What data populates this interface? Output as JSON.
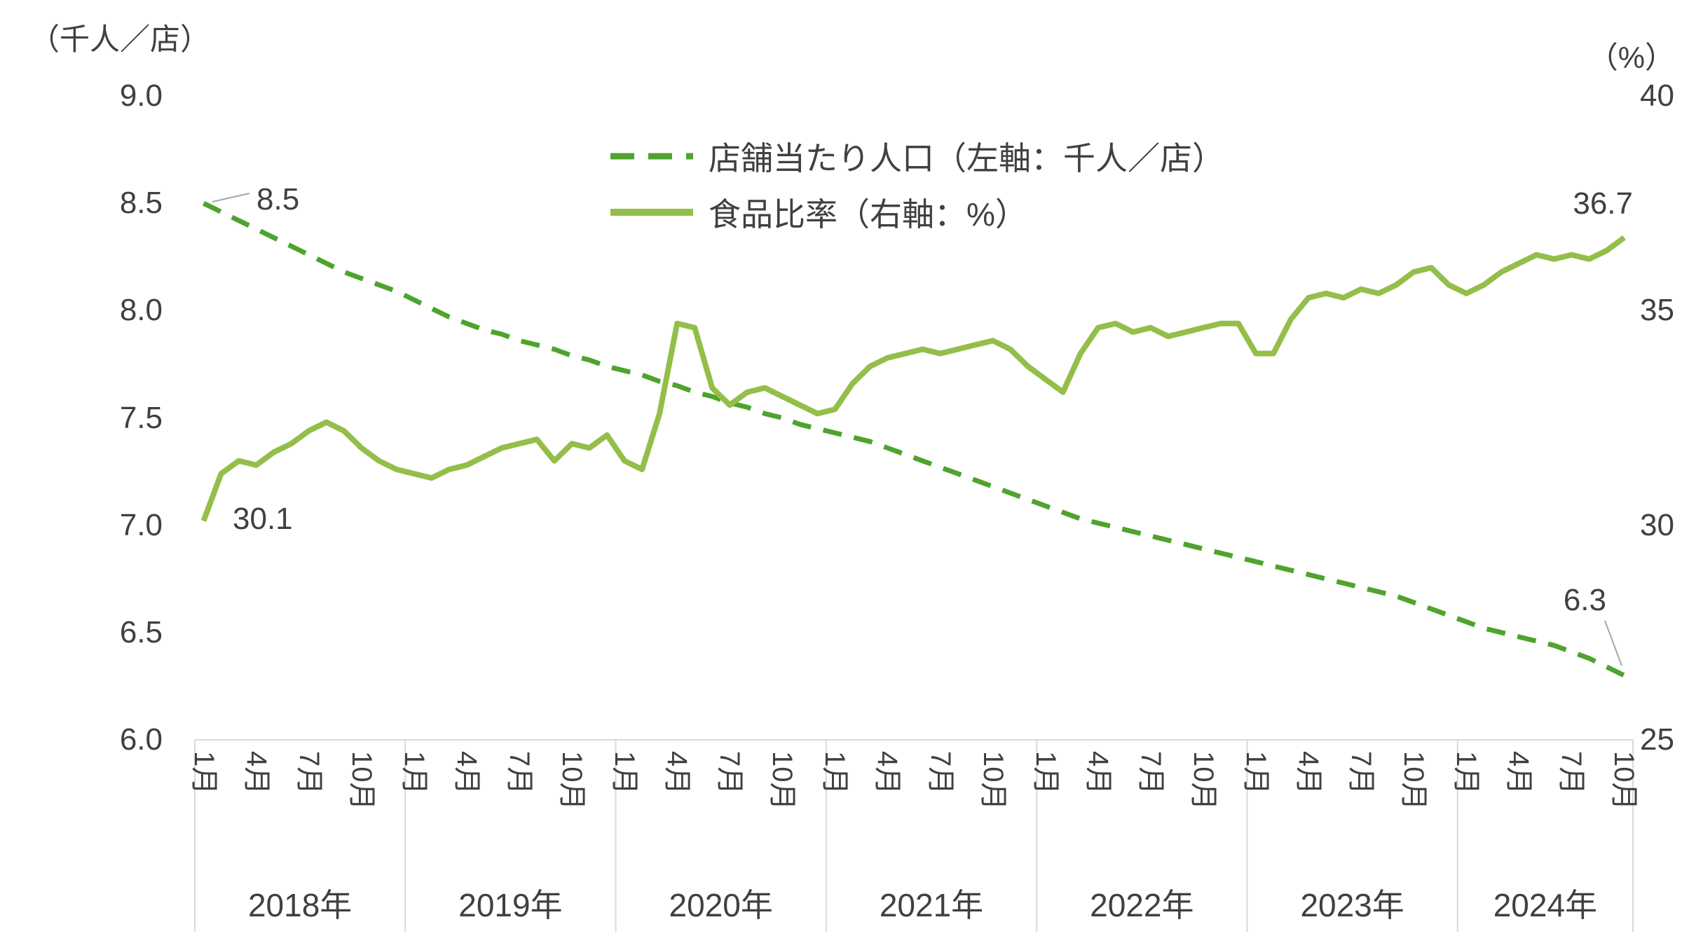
{
  "colors": {
    "dashed": "#4FA32E",
    "solid": "#94BE4A",
    "text": "#404040",
    "axis": "#D9D9D9",
    "leader": "#A6A6A6",
    "background": "#FFFFFF"
  },
  "chart_data": {
    "type": "line",
    "title": "",
    "left_axis": {
      "unit": "（千人／店）",
      "range": [
        6.0,
        9.0
      ],
      "ticks": [
        "9.0",
        "8.5",
        "8.0",
        "7.5",
        "7.0",
        "6.5",
        "6.0"
      ],
      "tick_values": [
        9.0,
        8.5,
        8.0,
        7.5,
        7.0,
        6.5,
        6.0
      ]
    },
    "right_axis": {
      "unit": "（%）",
      "range": [
        25,
        40
      ],
      "ticks": [
        "40",
        "35",
        "30",
        "25"
      ],
      "tick_values": [
        40,
        35,
        30,
        25
      ]
    },
    "x_axis": {
      "years": [
        {
          "label": "2018年",
          "months": 12
        },
        {
          "label": "2019年",
          "months": 12
        },
        {
          "label": "2020年",
          "months": 12
        },
        {
          "label": "2021年",
          "months": 12
        },
        {
          "label": "2022年",
          "months": 12
        },
        {
          "label": "2023年",
          "months": 12
        },
        {
          "label": "2024年",
          "months": 10
        }
      ],
      "month_tick_labels": [
        "1月",
        "4月",
        "7月",
        "10月"
      ],
      "month_tick_offsets": [
        0,
        3,
        6,
        9
      ]
    },
    "legend": [
      {
        "name": "店舗当たり人口（左軸：千人／店）",
        "style": "dashed"
      },
      {
        "name": "食品比率（右軸：%）",
        "style": "solid"
      }
    ],
    "series": [
      {
        "name": "店舗当たり人口",
        "axis": "left",
        "style": "dashed",
        "values": [
          8.5,
          8.46,
          8.42,
          8.38,
          8.34,
          8.3,
          8.26,
          8.22,
          8.18,
          8.15,
          8.12,
          8.09,
          8.05,
          8.01,
          7.97,
          7.94,
          7.91,
          7.89,
          7.86,
          7.84,
          7.82,
          7.79,
          7.77,
          7.74,
          7.72,
          7.7,
          7.67,
          7.65,
          7.62,
          7.6,
          7.57,
          7.55,
          7.52,
          7.5,
          7.47,
          7.45,
          7.43,
          7.41,
          7.39,
          7.36,
          7.33,
          7.3,
          7.27,
          7.24,
          7.21,
          7.18,
          7.15,
          7.12,
          7.09,
          7.06,
          7.03,
          7.01,
          6.99,
          6.97,
          6.95,
          6.93,
          6.91,
          6.89,
          6.87,
          6.85,
          6.83,
          6.81,
          6.79,
          6.77,
          6.75,
          6.73,
          6.71,
          6.69,
          6.67,
          6.64,
          6.61,
          6.58,
          6.55,
          6.52,
          6.5,
          6.48,
          6.46,
          6.44,
          6.41,
          6.38,
          6.34,
          6.3
        ]
      },
      {
        "name": "食品比率",
        "axis": "right",
        "style": "solid",
        "values": [
          30.1,
          31.2,
          31.5,
          31.4,
          31.7,
          31.9,
          32.2,
          32.4,
          32.2,
          31.8,
          31.5,
          31.3,
          31.2,
          31.1,
          31.3,
          31.4,
          31.6,
          31.8,
          31.9,
          32.0,
          31.5,
          31.9,
          31.8,
          32.1,
          31.5,
          31.3,
          32.6,
          34.7,
          34.6,
          33.2,
          32.8,
          33.1,
          33.2,
          33.0,
          32.8,
          32.6,
          32.7,
          33.3,
          33.7,
          33.9,
          34.0,
          34.1,
          34.0,
          34.1,
          34.2,
          34.3,
          34.1,
          33.7,
          33.4,
          33.1,
          34.0,
          34.6,
          34.7,
          34.5,
          34.6,
          34.4,
          34.5,
          34.6,
          34.7,
          34.7,
          34.0,
          34.0,
          34.8,
          35.3,
          35.4,
          35.3,
          35.5,
          35.4,
          35.6,
          35.9,
          36.0,
          35.6,
          35.4,
          35.6,
          35.9,
          36.1,
          36.3,
          36.2,
          36.3,
          36.2,
          36.4,
          36.7
        ]
      }
    ],
    "annotations": [
      {
        "id": "start_left",
        "text": "8.5"
      },
      {
        "id": "start_right",
        "text": "30.1"
      },
      {
        "id": "end_right",
        "text": "36.7"
      },
      {
        "id": "end_left",
        "text": "6.3"
      }
    ]
  }
}
